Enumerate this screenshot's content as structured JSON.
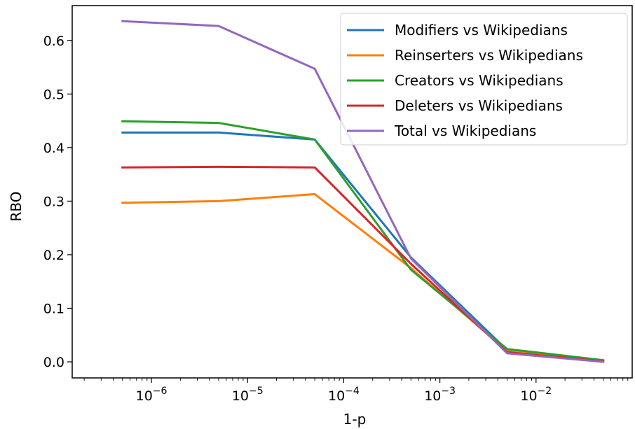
{
  "chart_data": {
    "type": "line",
    "title": "",
    "xlabel": "1-p",
    "ylabel": "RBO",
    "xscale": "log",
    "x": [
      5e-07,
      5e-06,
      5e-05,
      0.0005,
      0.005,
      0.05
    ],
    "xlim": [
      1.5e-07,
      0.1
    ],
    "ylim": [
      -0.03,
      0.665
    ],
    "yticks": [
      0.0,
      0.1,
      0.2,
      0.3,
      0.4,
      0.5,
      0.6
    ],
    "ytick_labels": [
      "0.0",
      "0.1",
      "0.2",
      "0.3",
      "0.4",
      "0.5",
      "0.6"
    ],
    "xticks": [
      {
        "value": 1e-06,
        "base": "10",
        "exp": "−6"
      },
      {
        "value": 1e-05,
        "base": "10",
        "exp": "−5"
      },
      {
        "value": 0.0001,
        "base": "10",
        "exp": "−4"
      },
      {
        "value": 0.001,
        "base": "10",
        "exp": "−3"
      },
      {
        "value": 0.01,
        "base": "10",
        "exp": "−2"
      }
    ],
    "grid": false,
    "legend_position": "top-right",
    "series": [
      {
        "name": "Modifiers vs Wikipedians",
        "color": "#1f77b4",
        "values": [
          0.428,
          0.428,
          0.415,
          0.195,
          0.022,
          0.002
        ]
      },
      {
        "name": "Reinserters vs Wikipedians",
        "color": "#ff7f0e",
        "values": [
          0.297,
          0.3,
          0.313,
          0.175,
          0.02,
          0.002
        ]
      },
      {
        "name": "Creators vs Wikipedians",
        "color": "#2ca02c",
        "values": [
          0.449,
          0.446,
          0.415,
          0.172,
          0.024,
          0.003
        ]
      },
      {
        "name": "Deleters vs Wikipedians",
        "color": "#d62728",
        "values": [
          0.363,
          0.364,
          0.363,
          0.183,
          0.018,
          0.001
        ]
      },
      {
        "name": "Total vs Wikipedians",
        "color": "#9467bd",
        "values": [
          0.636,
          0.627,
          0.547,
          0.193,
          0.016,
          0.0
        ]
      }
    ]
  }
}
